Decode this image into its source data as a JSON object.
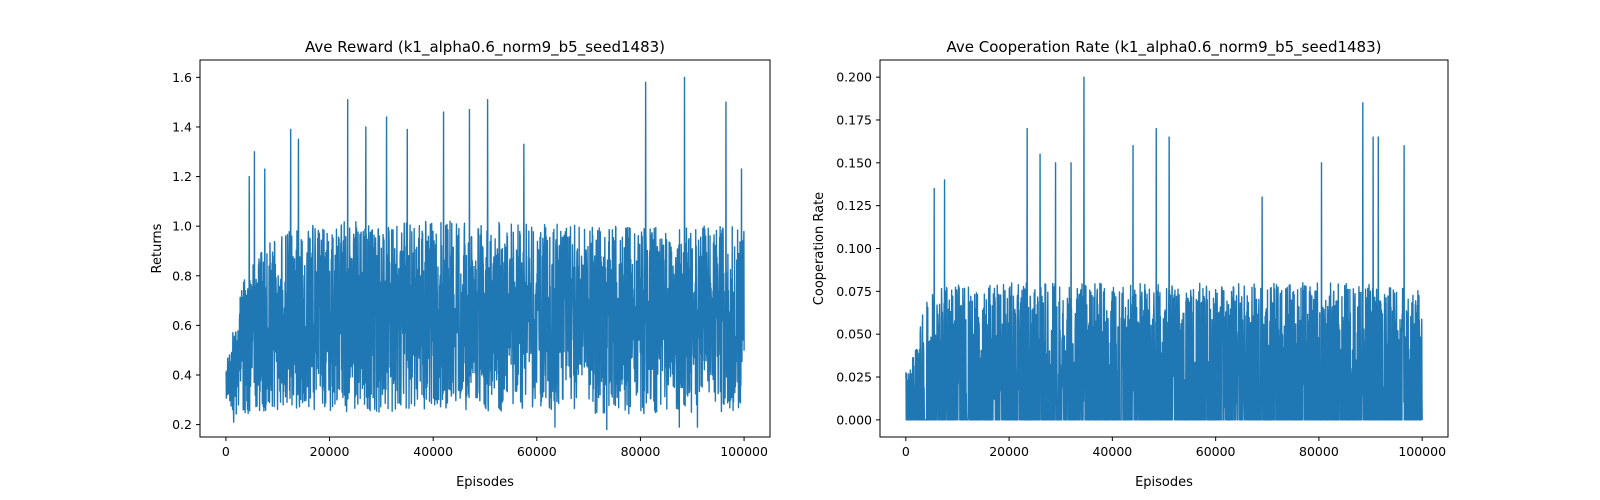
{
  "chart_data": [
    {
      "type": "line",
      "title": "Ave Reward (k1_alpha0.6_norm9_b5_seed1483)",
      "xlabel": "Episodes",
      "ylabel": "Returns",
      "xlim": [
        -5000,
        105000
      ],
      "ylim": [
        0.15,
        1.67
      ],
      "xticks": [
        0,
        20000,
        40000,
        60000,
        80000,
        100000
      ],
      "xtick_labels": [
        "0",
        "20000",
        "40000",
        "60000",
        "80000",
        "100000"
      ],
      "yticks": [
        0.2,
        0.4,
        0.6,
        0.8,
        1.0,
        1.2,
        1.4,
        1.6
      ],
      "ytick_labels": [
        "0.2",
        "0.4",
        "0.6",
        "0.8",
        "1.0",
        "1.2",
        "1.4",
        "1.6"
      ],
      "series_color": "#1f77b4",
      "envelope": {
        "x": [
          0,
          1000,
          2000,
          3000,
          4000,
          5000,
          10000,
          20000,
          30000,
          40000,
          50000,
          60000,
          70000,
          80000,
          90000,
          100000
        ],
        "low": [
          0.26,
          0.24,
          0.23,
          0.23,
          0.24,
          0.25,
          0.25,
          0.25,
          0.25,
          0.25,
          0.25,
          0.25,
          0.24,
          0.24,
          0.24,
          0.26
        ],
        "high": [
          0.45,
          0.55,
          0.65,
          0.75,
          0.82,
          0.88,
          0.97,
          1.02,
          1.02,
          1.02,
          1.02,
          1.02,
          1.0,
          1.0,
          1.0,
          1.0
        ]
      },
      "peaks": [
        {
          "x": 4500,
          "y": 1.2
        },
        {
          "x": 5500,
          "y": 1.3
        },
        {
          "x": 7500,
          "y": 1.23
        },
        {
          "x": 12500,
          "y": 1.39
        },
        {
          "x": 14000,
          "y": 1.35
        },
        {
          "x": 23500,
          "y": 1.51
        },
        {
          "x": 27000,
          "y": 1.4
        },
        {
          "x": 31000,
          "y": 1.44
        },
        {
          "x": 35000,
          "y": 1.39
        },
        {
          "x": 42000,
          "y": 1.46
        },
        {
          "x": 47000,
          "y": 1.47
        },
        {
          "x": 50500,
          "y": 1.51
        },
        {
          "x": 57500,
          "y": 1.33
        },
        {
          "x": 81000,
          "y": 1.58
        },
        {
          "x": 88500,
          "y": 1.6
        },
        {
          "x": 96500,
          "y": 1.5
        },
        {
          "x": 99500,
          "y": 1.23
        }
      ],
      "troughs": [
        {
          "x": 73500,
          "y": 0.18
        },
        {
          "x": 63500,
          "y": 0.19
        },
        {
          "x": 87500,
          "y": 0.19
        },
        {
          "x": 91000,
          "y": 0.19
        },
        {
          "x": 1500,
          "y": 0.21
        }
      ]
    },
    {
      "type": "line",
      "title": "Ave Cooperation Rate (k1_alpha0.6_norm9_b5_seed1483)",
      "xlabel": "Episodes",
      "ylabel": "Cooperation Rate",
      "xlim": [
        -5000,
        105000
      ],
      "ylim": [
        -0.01,
        0.21
      ],
      "xticks": [
        0,
        20000,
        40000,
        60000,
        80000,
        100000
      ],
      "xtick_labels": [
        "0",
        "20000",
        "40000",
        "60000",
        "80000",
        "100000"
      ],
      "yticks": [
        0.0,
        0.025,
        0.05,
        0.075,
        0.1,
        0.125,
        0.15,
        0.175,
        0.2
      ],
      "ytick_labels": [
        "0.000",
        "0.025",
        "0.050",
        "0.075",
        "0.100",
        "0.125",
        "0.150",
        "0.175",
        "0.200"
      ],
      "series_color": "#1f77b4",
      "envelope": {
        "x": [
          0,
          1000,
          2000,
          3000,
          4000,
          5000,
          10000,
          20000,
          30000,
          40000,
          50000,
          60000,
          70000,
          80000,
          90000,
          100000
        ],
        "low": [
          0,
          0,
          0,
          0,
          0,
          0,
          0,
          0,
          0,
          0,
          0,
          0,
          0,
          0,
          0,
          0
        ],
        "high": [
          0.03,
          0.035,
          0.045,
          0.06,
          0.07,
          0.075,
          0.08,
          0.08,
          0.08,
          0.08,
          0.08,
          0.08,
          0.08,
          0.08,
          0.08,
          0.075
        ]
      },
      "peaks": [
        {
          "x": 5500,
          "y": 0.135
        },
        {
          "x": 7500,
          "y": 0.14
        },
        {
          "x": 23500,
          "y": 0.17
        },
        {
          "x": 26000,
          "y": 0.155
        },
        {
          "x": 29000,
          "y": 0.15
        },
        {
          "x": 32000,
          "y": 0.15
        },
        {
          "x": 34500,
          "y": 0.2
        },
        {
          "x": 44000,
          "y": 0.16
        },
        {
          "x": 48500,
          "y": 0.17
        },
        {
          "x": 51000,
          "y": 0.165
        },
        {
          "x": 80500,
          "y": 0.15
        },
        {
          "x": 88500,
          "y": 0.185
        },
        {
          "x": 90500,
          "y": 0.165
        },
        {
          "x": 91500,
          "y": 0.165
        },
        {
          "x": 96500,
          "y": 0.16
        },
        {
          "x": 69000,
          "y": 0.13
        }
      ],
      "troughs": []
    }
  ]
}
